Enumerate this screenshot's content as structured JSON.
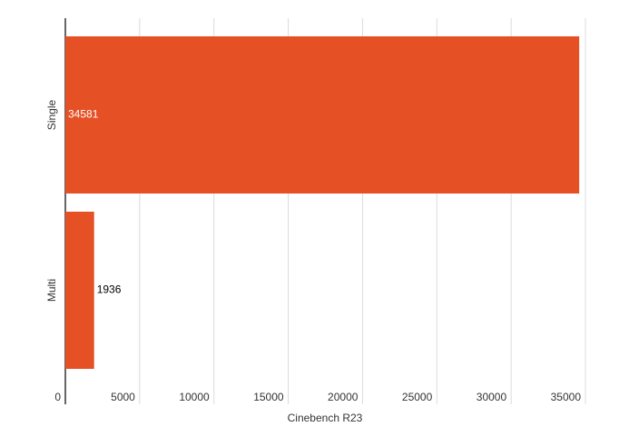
{
  "chart_data": {
    "type": "hbar",
    "categories": [
      "Single",
      "Multi"
    ],
    "series": [
      {
        "name": "Cinebench R23",
        "color": "#e55025",
        "values": [
          34581,
          1936
        ]
      }
    ],
    "x_label": "Cinebench R23",
    "xlim": [
      0,
      35000
    ],
    "xticks": [
      0,
      5000,
      10000,
      15000,
      20000,
      25000,
      30000,
      35000
    ],
    "grid": true
  }
}
